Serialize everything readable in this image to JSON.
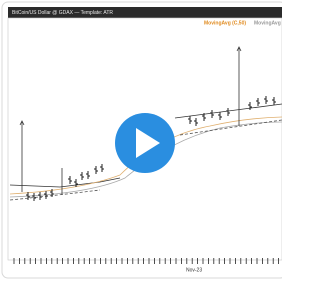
{
  "header": {
    "title": "BitCoin/US Dollar @ GDAX — Template: ATR"
  },
  "legend": [
    "MovingAvg (C,50)",
    "MovingAvg"
  ],
  "x_axis": {
    "label": "Nov-23"
  }
}
